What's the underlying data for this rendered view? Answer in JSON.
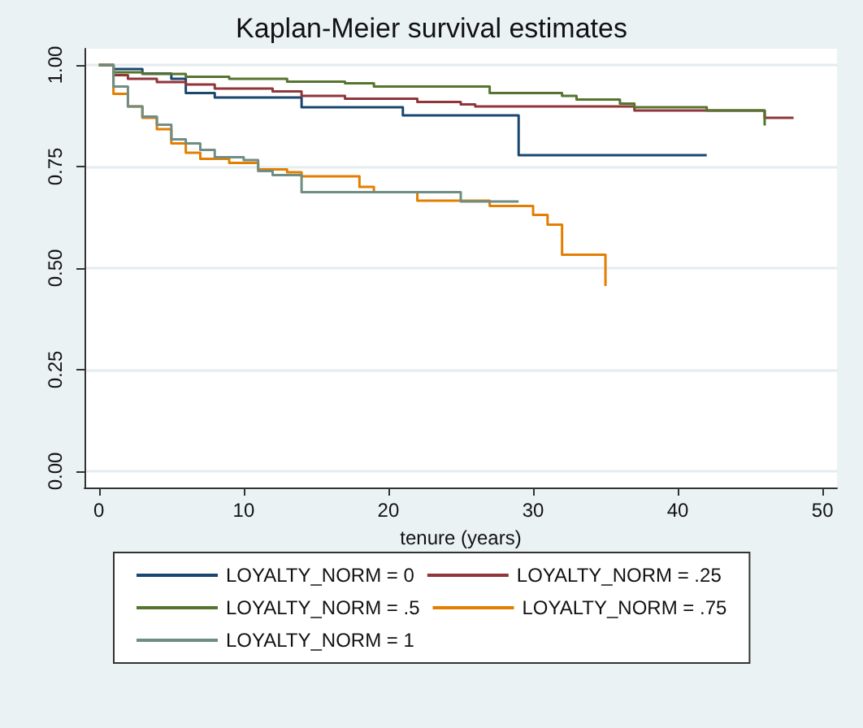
{
  "chart_data": {
    "type": "step",
    "title": "Kaplan-Meier survival estimates",
    "xlabel": "tenure (years)",
    "xlim": [
      -1,
      51
    ],
    "xticks": [
      0,
      10,
      20,
      30,
      40,
      50
    ],
    "ylim": [
      -0.04,
      1.04
    ],
    "yticks": [
      {
        "value": 0,
        "label": "0.00"
      },
      {
        "value": 0.25,
        "label": "0.25"
      },
      {
        "value": 0.5,
        "label": "0.50"
      },
      {
        "value": 0.75,
        "label": "0.75"
      },
      {
        "value": 1,
        "label": "1.00"
      }
    ],
    "grid": "y",
    "legend": "bottom",
    "marker": "none",
    "line_style": "solid",
    "series": [
      {
        "name": "LOYALTY_NORM = 0",
        "color": "#1a476f",
        "x": [
          0,
          1,
          3,
          5,
          6,
          8,
          14,
          21,
          29,
          42
        ],
        "values": [
          1,
          0.99,
          0.979,
          0.966,
          0.931,
          0.92,
          0.896,
          0.876,
          0.778,
          0.778
        ]
      },
      {
        "name": "LOYALTY_NORM = .25",
        "color": "#90353b",
        "x": [
          0,
          1,
          2,
          4,
          6,
          8,
          12,
          14,
          17,
          22,
          25,
          26,
          37,
          46,
          48
        ],
        "values": [
          1,
          0.975,
          0.966,
          0.958,
          0.952,
          0.942,
          0.935,
          0.924,
          0.917,
          0.909,
          0.903,
          0.898,
          0.888,
          0.87,
          0.87
        ]
      },
      {
        "name": "LOYALTY_NORM = .5",
        "color": "#55752f",
        "x": [
          0,
          1,
          3,
          6,
          9,
          13,
          17,
          19,
          27,
          32,
          33,
          36,
          37,
          42,
          46,
          46
        ],
        "values": [
          1,
          0.982,
          0.978,
          0.971,
          0.966,
          0.959,
          0.955,
          0.947,
          0.931,
          0.924,
          0.915,
          0.905,
          0.896,
          0.888,
          0.888,
          0.851
        ]
      },
      {
        "name": "LOYALTY_NORM = .75",
        "color": "#e37e00",
        "x": [
          0,
          1,
          2,
          3,
          4,
          5,
          6,
          7,
          9,
          11,
          13,
          14,
          18,
          19,
          22,
          27,
          30,
          31,
          32,
          35,
          35
        ],
        "values": [
          1,
          0.929,
          0.898,
          0.87,
          0.842,
          0.807,
          0.784,
          0.769,
          0.759,
          0.743,
          0.736,
          0.726,
          0.7,
          0.687,
          0.666,
          0.653,
          0.631,
          0.607,
          0.533,
          0.533,
          0.456
        ]
      },
      {
        "name": "LOYALTY_NORM = 1",
        "color": "#6e8e84",
        "x": [
          0,
          1,
          2,
          3,
          4,
          5,
          6,
          7,
          8,
          10,
          11,
          12,
          14,
          25,
          29
        ],
        "values": [
          1,
          0.947,
          0.898,
          0.873,
          0.853,
          0.817,
          0.807,
          0.791,
          0.773,
          0.766,
          0.739,
          0.729,
          0.687,
          0.664,
          0.664
        ]
      }
    ]
  }
}
